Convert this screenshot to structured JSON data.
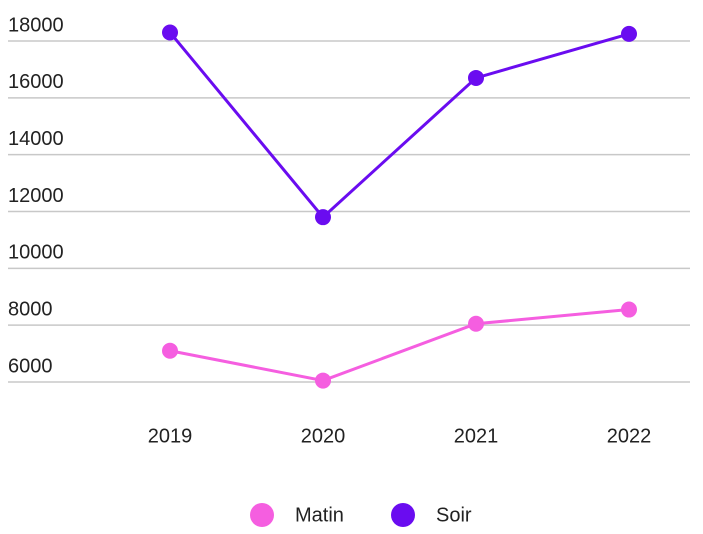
{
  "chart_data": {
    "type": "line",
    "categories": [
      "2019",
      "2020",
      "2021",
      "2022"
    ],
    "series": [
      {
        "name": "Matin",
        "color": "#f55ee0",
        "values": [
          7100,
          6050,
          8050,
          8550
        ]
      },
      {
        "name": "Soir",
        "color": "#6a0cf0",
        "values": [
          18300,
          11800,
          16700,
          18250
        ]
      }
    ],
    "ylim": [
      6000,
      18000
    ],
    "yticks": [
      6000,
      8000,
      10000,
      12000,
      14000,
      16000,
      18000
    ],
    "grid": true
  }
}
